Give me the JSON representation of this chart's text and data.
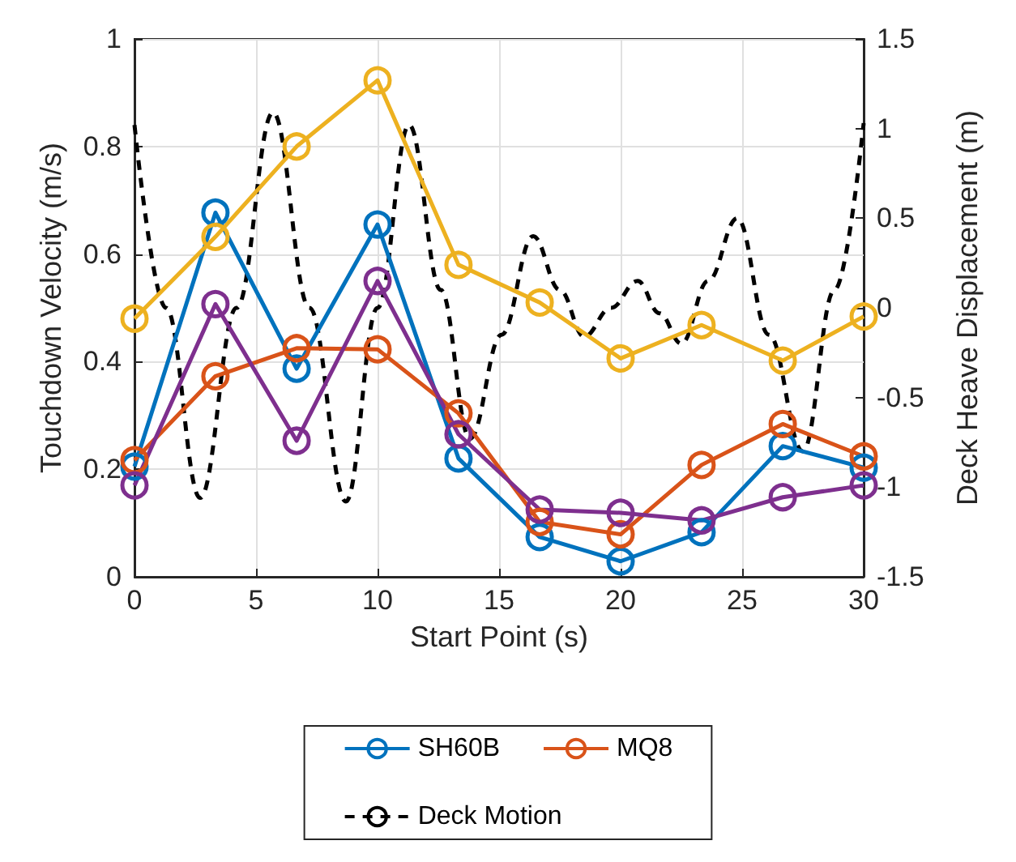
{
  "chart_data": {
    "type": "line",
    "xlabel": "Start Point (s)",
    "ylabel": "Touchdown Velocity (m/s)",
    "y2label": "Deck Heave Displacement (m)",
    "xlim": [
      0,
      30
    ],
    "xticks": [
      0,
      5,
      10,
      15,
      20,
      25,
      30
    ],
    "ylim": [
      0,
      1
    ],
    "yticks": [
      0,
      0.2,
      0.4,
      0.6,
      0.8,
      1
    ],
    "y2lim": [
      -1.5,
      1.5
    ],
    "y2ticks": [
      -1.5,
      -1,
      -0.5,
      0,
      0.5,
      1,
      1.5
    ],
    "grid": true,
    "legend": "bottom",
    "marker": "circle",
    "x": [
      0,
      3.33,
      6.67,
      10,
      13.33,
      16.67,
      20,
      23.33,
      26.67,
      30
    ],
    "series": [
      {
        "name": "SH60B",
        "color": "#0072bd",
        "values": [
          0.205,
          0.677,
          0.387,
          0.655,
          0.22,
          0.074,
          0.029,
          0.083,
          0.243,
          0.203
        ]
      },
      {
        "name": "MQ8",
        "color": "#d95319",
        "values": [
          0.217,
          0.373,
          0.425,
          0.423,
          0.304,
          0.102,
          0.079,
          0.208,
          0.284,
          0.224
        ]
      },
      {
        "color": "#edb120",
        "values": [
          0.48,
          0.632,
          0.8,
          0.923,
          0.58,
          0.51,
          0.406,
          0.468,
          0.402,
          0.484
        ]
      },
      {
        "color": "#7e2f8e",
        "values": [
          0.17,
          0.507,
          0.253,
          0.55,
          0.265,
          0.125,
          0.119,
          0.105,
          0.148,
          0.17
        ]
      },
      {
        "name": "Deck Motion",
        "color": "#000000",
        "axis": "y2",
        "marker": "none",
        "line_style": "dashed",
        "x": [
          0,
          1.3,
          2.7,
          4.2,
          5.7,
          7.2,
          8.7,
          10,
          11.3,
          12.6,
          13.8,
          15.1,
          16.4,
          17.5,
          18.5,
          19.6,
          20.7,
          21.6,
          22.5,
          23.6,
          24.8,
          26.1,
          27.5,
          28.8,
          30
        ],
        "values": [
          1.02,
          0,
          -1.06,
          0,
          1.09,
          0,
          -1.08,
          0,
          1.02,
          0.1,
          -0.73,
          -0.15,
          0.4,
          0.1,
          -0.16,
          0,
          0.15,
          -0.03,
          -0.2,
          0.15,
          0.5,
          -0.15,
          -0.8,
          0.1,
          1.03
        ]
      }
    ]
  }
}
